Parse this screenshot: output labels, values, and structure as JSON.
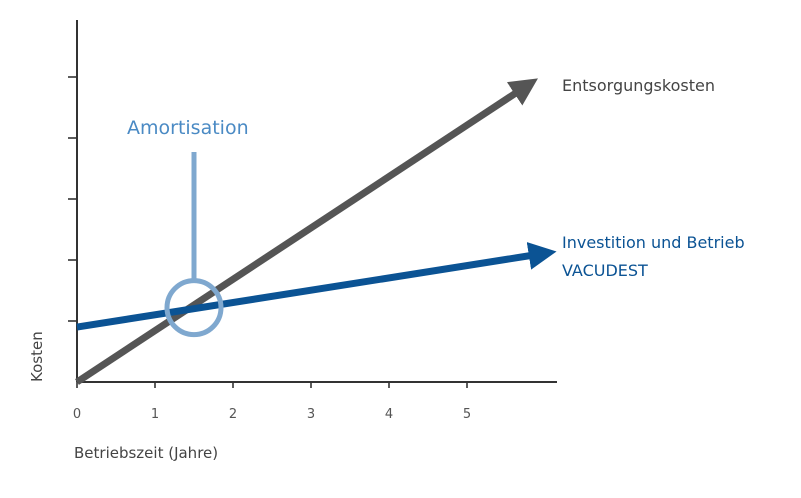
{
  "chart_data": {
    "type": "line",
    "xlabel": "Betriebszeit (Jahre)",
    "ylabel": "Kosten",
    "x_ticks": [
      "0",
      "1",
      "2",
      "3",
      "4",
      "5"
    ],
    "xlim": [
      0,
      6.2
    ],
    "ylim": [
      0,
      5
    ],
    "y_tick_count": 5,
    "y_tick_labels_shown": false,
    "grid": false,
    "series": [
      {
        "name": "Entsorgungskosten",
        "x": [
          0,
          5.7
        ],
        "y": [
          0,
          4.8
        ],
        "color": "#555555",
        "arrow": true
      },
      {
        "name": "Investition und Betrieb VACUDEST",
        "label_lines": [
          "Investition und Betrieb",
          "VACUDEST"
        ],
        "x": [
          0,
          5.9
        ],
        "y": [
          0.9,
          2.09
        ],
        "color": "#0b5394",
        "arrow": true
      }
    ],
    "annotations": [
      {
        "text": "Amortisation",
        "x": 1.5,
        "y": 1.22,
        "color": "#7fa8cf",
        "text_color": "#4a8ac4"
      }
    ]
  }
}
